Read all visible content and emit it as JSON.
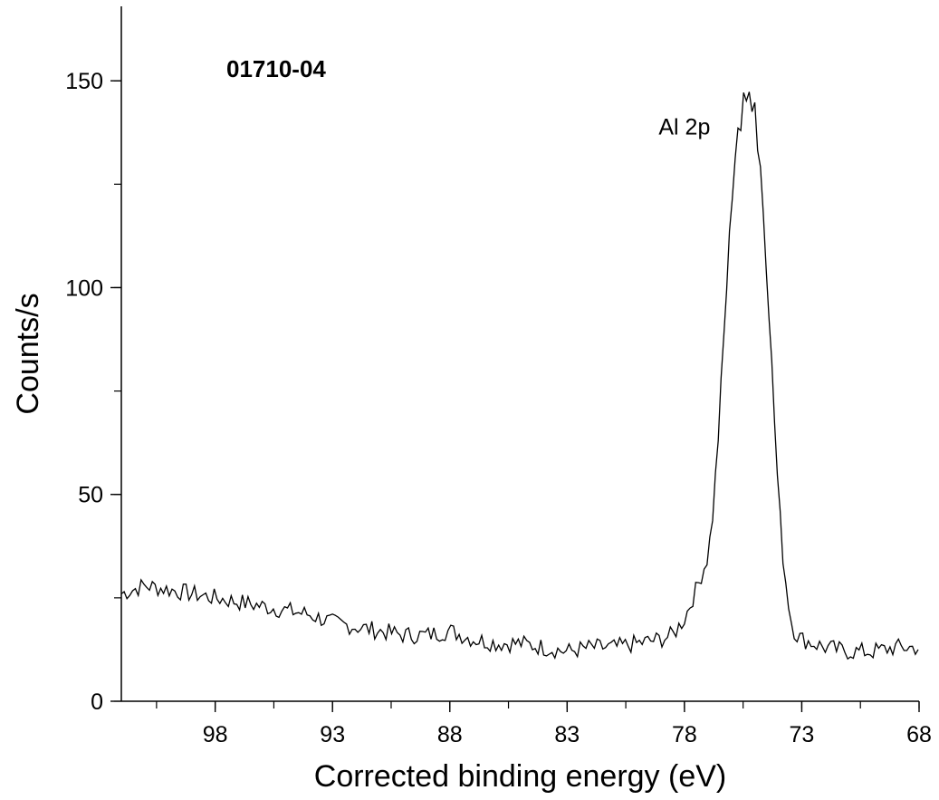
{
  "chart_data": {
    "type": "line",
    "title": "",
    "sample_label": "01710-04",
    "annotations": [
      {
        "text": "Al 2p",
        "x": 79.1,
        "y": 137
      }
    ],
    "xlabel": "Corrected binding energy (eV)",
    "ylabel": "Counts/s",
    "x_reversed": true,
    "xlim": [
      102,
      68
    ],
    "ylim": [
      0,
      168
    ],
    "x_ticks": [
      98,
      93,
      88,
      83,
      78,
      73,
      68
    ],
    "x_tick_labels": [
      "98",
      "93",
      "88",
      "83",
      "78",
      "73",
      "68"
    ],
    "y_ticks": [
      0,
      50,
      100,
      150
    ],
    "y_tick_labels": [
      "0",
      "50",
      "100",
      "150"
    ],
    "x_minor_step": 2.5,
    "y_minor_step": 25,
    "grid": false,
    "legend": "none",
    "line_color": "#000000",
    "series": [
      {
        "x": [
          102,
          101,
          100,
          99,
          98,
          97,
          96,
          95,
          94,
          93,
          92,
          91,
          90,
          89,
          88,
          87,
          86,
          85,
          84,
          83,
          82,
          81,
          80,
          79,
          78.5,
          78,
          77.5,
          77,
          76.8,
          76.6,
          76.4,
          76.2,
          76.0,
          75.8,
          75.7,
          75.6,
          75.5,
          75.4,
          75.3,
          75.2,
          75.1,
          75.0,
          74.9,
          74.8,
          74.7,
          74.6,
          74.4,
          74.2,
          74.0,
          73.8,
          73.6,
          73.4,
          73.2,
          73.0,
          72.5,
          72.0,
          71,
          70,
          69,
          68
        ],
        "y": [
          26,
          28,
          27,
          26,
          25,
          24,
          23,
          22,
          21,
          19,
          18,
          17,
          16,
          16,
          17,
          15,
          14,
          14,
          13,
          12,
          13,
          13,
          14,
          15,
          16,
          20,
          27,
          35,
          45,
          60,
          80,
          100,
          120,
          135,
          140,
          136,
          146,
          150,
          143,
          153,
          140,
          146,
          134,
          132,
          125,
          115,
          95,
          72,
          50,
          35,
          25,
          18,
          16,
          15,
          14,
          13,
          12,
          12,
          13,
          13
        ]
      }
    ]
  }
}
